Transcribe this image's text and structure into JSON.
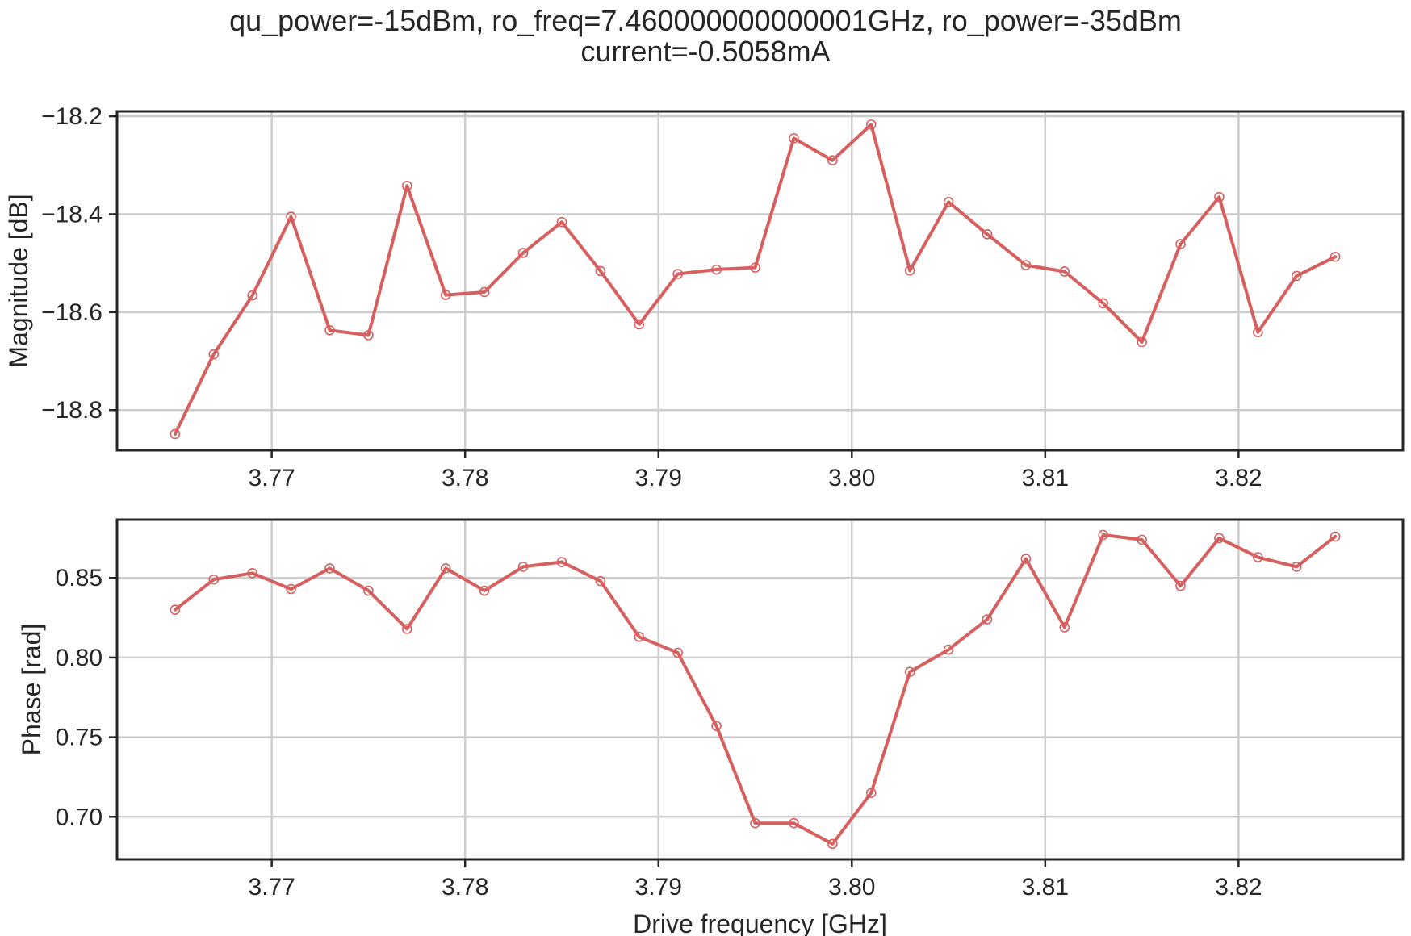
{
  "figure": {
    "title_line1": "qu_power=-15dBm, ro_freq=7.460000000000001GHz, ro_power=-35dBm",
    "title_line2": "current=-0.5058mA"
  },
  "style": {
    "line_color": "#d65f5f",
    "grid_color": "#cccccc",
    "axes_color": "#262626"
  },
  "chart_data": [
    {
      "type": "line",
      "name": "magnitude",
      "xlabel": "",
      "ylabel": "Magnitude [dB]",
      "xlim": [
        3.762,
        3.8285
      ],
      "ylim": [
        -18.882,
        -18.19
      ],
      "xticks": [
        3.77,
        3.78,
        3.79,
        3.8,
        3.81,
        3.82
      ],
      "xticklabels": [
        "3.77",
        "3.78",
        "3.79",
        "3.80",
        "3.81",
        "3.82"
      ],
      "yticks": [
        -18.8,
        -18.6,
        -18.4,
        -18.2
      ],
      "yticklabels": [
        "−18.8",
        "−18.6",
        "−18.4",
        "−18.2"
      ],
      "grid": true,
      "x": [
        3.765,
        3.767,
        3.769,
        3.771,
        3.773,
        3.775,
        3.777,
        3.779,
        3.781,
        3.783,
        3.785,
        3.787,
        3.789,
        3.791,
        3.793,
        3.795,
        3.797,
        3.799,
        3.801,
        3.803,
        3.805,
        3.807,
        3.809,
        3.811,
        3.813,
        3.815,
        3.817,
        3.819,
        3.821,
        3.823,
        3.825
      ],
      "y": [
        -18.849,
        -18.686,
        -18.566,
        -18.405,
        -18.637,
        -18.647,
        -18.342,
        -18.565,
        -18.559,
        -18.479,
        -18.416,
        -18.516,
        -18.625,
        -18.522,
        -18.513,
        -18.509,
        -18.245,
        -18.29,
        -18.217,
        -18.515,
        -18.375,
        -18.441,
        -18.504,
        -18.517,
        -18.582,
        -18.661,
        -18.461,
        -18.365,
        -18.641,
        -18.526,
        -18.487
      ]
    },
    {
      "type": "line",
      "name": "phase",
      "xlabel": "Drive frequency [GHz]",
      "ylabel": "Phase [rad]",
      "xlim": [
        3.762,
        3.8285
      ],
      "ylim": [
        0.6733,
        0.8866
      ],
      "xticks": [
        3.77,
        3.78,
        3.79,
        3.8,
        3.81,
        3.82
      ],
      "xticklabels": [
        "3.77",
        "3.78",
        "3.79",
        "3.80",
        "3.81",
        "3.82"
      ],
      "yticks": [
        0.7,
        0.75,
        0.8,
        0.85
      ],
      "yticklabels": [
        "0.70",
        "0.75",
        "0.80",
        "0.85"
      ],
      "grid": true,
      "x": [
        3.765,
        3.767,
        3.769,
        3.771,
        3.773,
        3.775,
        3.777,
        3.779,
        3.781,
        3.783,
        3.785,
        3.787,
        3.789,
        3.791,
        3.793,
        3.795,
        3.797,
        3.799,
        3.801,
        3.803,
        3.805,
        3.807,
        3.809,
        3.811,
        3.813,
        3.815,
        3.817,
        3.819,
        3.821,
        3.823,
        3.825
      ],
      "y": [
        0.83,
        0.849,
        0.853,
        0.843,
        0.856,
        0.842,
        0.818,
        0.856,
        0.842,
        0.857,
        0.86,
        0.848,
        0.813,
        0.803,
        0.757,
        0.696,
        0.696,
        0.683,
        0.715,
        0.791,
        0.805,
        0.824,
        0.862,
        0.819,
        0.877,
        0.874,
        0.845,
        0.875,
        0.863,
        0.857,
        0.876
      ]
    }
  ]
}
